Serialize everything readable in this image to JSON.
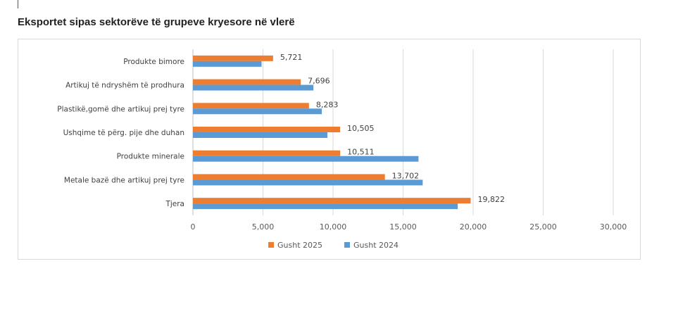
{
  "page": {
    "title": "Eksportet sipas sektorëve të grupeve kryesore në vlerë"
  },
  "chart_data": {
    "type": "bar",
    "orientation": "horizontal",
    "title": "",
    "xlabel": "",
    "ylabel": "",
    "categories": [
      "Produkte bimore",
      "Artikuj të ndryshëm të prodhura",
      "Plastikë,gomë dhe artikuj prej tyre",
      "Ushqime të përg. pije dhe duhan",
      "Produkte minerale",
      "Metale bazë dhe artikuj prej tyre",
      "Tjera"
    ],
    "series": [
      {
        "name": "Gusht 2025",
        "color": "#ed7d31",
        "values": [
          5721,
          7696,
          8283,
          10505,
          10511,
          13702,
          19822
        ]
      },
      {
        "name": "Gusht 2024",
        "color": "#5b9bd5",
        "values": [
          4900,
          8600,
          9200,
          9600,
          16100,
          16400,
          18900
        ]
      }
    ],
    "data_labels": [
      "5,721",
      "7,696",
      "8,283",
      "10,505",
      "10,511",
      "13,702",
      "19,822"
    ],
    "xlim": [
      0,
      30000
    ],
    "xticks": [
      0,
      5000,
      10000,
      15000,
      20000,
      25000,
      30000
    ],
    "xtick_labels": [
      "0",
      "5,000",
      "10,000",
      "15,000",
      "20,000",
      "25,000",
      "30,000"
    ],
    "grid": true,
    "legend_position": "bottom"
  }
}
